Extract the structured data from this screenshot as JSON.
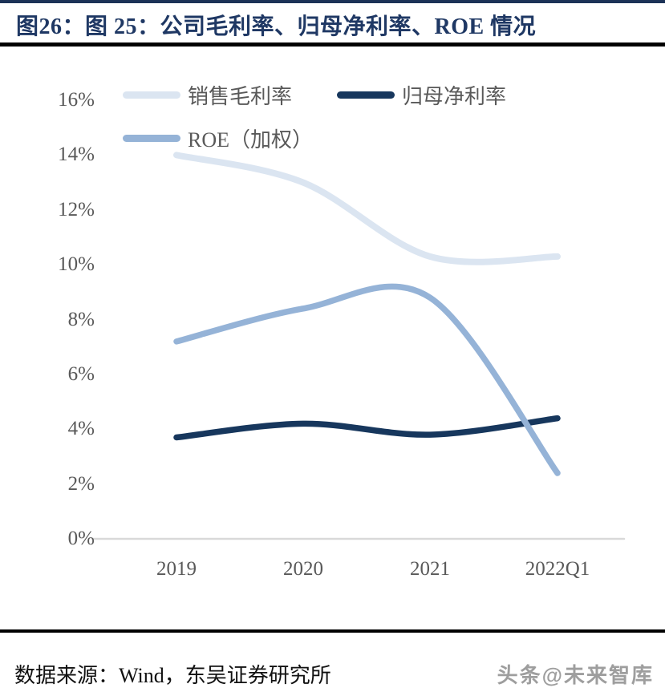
{
  "header": {
    "title": "图26：图 25：公司毛利率、归母净利率、ROE 情况"
  },
  "chart_data": {
    "type": "line",
    "smooth": true,
    "categories": [
      "2019",
      "2020",
      "2021",
      "2022Q1"
    ],
    "series": [
      {
        "name": "销售毛利率",
        "color": "#dbe5f1",
        "values": [
          14.0,
          13.0,
          10.3,
          10.3
        ]
      },
      {
        "name": "归母净利率",
        "color": "#17375d",
        "values": [
          3.7,
          4.2,
          3.8,
          4.4
        ]
      },
      {
        "name": "ROE（加权）",
        "color": "#95b3d7",
        "values": [
          7.2,
          8.4,
          8.8,
          2.4
        ]
      }
    ],
    "yticks": [
      0,
      2,
      4,
      6,
      8,
      10,
      12,
      14,
      16
    ],
    "ytick_suffix": "%",
    "ylim": [
      0,
      16
    ],
    "grid": false,
    "legend_position": "top-left",
    "axis_color": "#d9d9d9",
    "tick_color": "#595959"
  },
  "footer": {
    "source": "数据来源：Wind，东吴证券研究所",
    "watermark": "头条@未来智库"
  }
}
